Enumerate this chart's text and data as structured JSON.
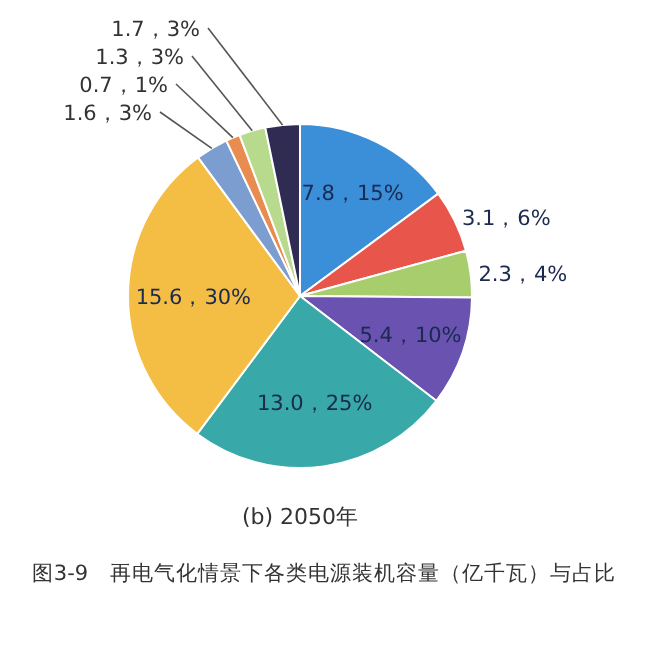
{
  "chart_data": {
    "type": "pie",
    "title": "图3-9　再电气化情景下各类电源装机容量（亿千瓦）与占比",
    "subtitle": "(b) 2050年",
    "categories": [
      null,
      null,
      null,
      null,
      null,
      null,
      null,
      null,
      null,
      null
    ],
    "values": [
      7.8,
      3.1,
      2.3,
      5.4,
      13.0,
      15.6,
      1.6,
      0.7,
      1.3,
      1.7
    ],
    "value_labels": [
      "7.8，15%",
      "3.1，6%",
      "2.3，4%",
      "5.4，10%",
      "13.0，25%",
      "15.6，30%",
      "1.6，3%",
      "0.7，1%",
      "1.3，3%",
      "1.7，3%"
    ],
    "colors": [
      "#3b8ed8",
      "#e8554b",
      "#a8cd6c",
      "#6a52b0",
      "#38a8a8",
      "#f4bd44",
      "#7c9dd0",
      "#e88c50",
      "#b8da8c",
      "#2f2b52"
    ]
  }
}
